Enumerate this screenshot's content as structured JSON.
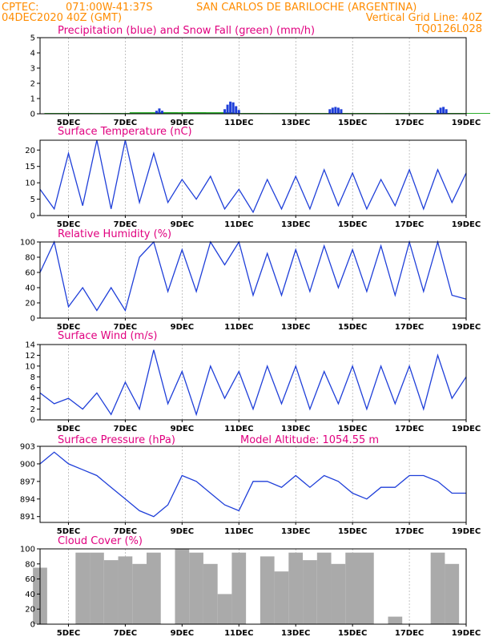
{
  "header": {
    "source": "CPTEC:",
    "coords": "071:00W-41:37S",
    "location": "SAN CARLOS DE BARILOCHE (ARGENTINA)",
    "run": "04DEC2020 40Z (GMT)",
    "grid_note": "Vertical Grid Line: 40Z",
    "model": "TQ0126L028",
    "altitude_label": "Model Altitude: 1054.55 m"
  },
  "colors": {
    "header": "#ff8c00",
    "title": "#e0007f",
    "blue": "#1f3fd9",
    "green": "#22aa22",
    "gray": "#aaaaaa"
  },
  "x_ticks": [
    "5DEC",
    "7DEC",
    "9DEC",
    "11DEC",
    "13DEC",
    "15DEC",
    "17DEC",
    "19DEC"
  ],
  "chart_data": [
    {
      "type": "bar",
      "title": "Precipitation (blue) and Snow Fall (green) (mm/h)",
      "ylim": [
        0,
        5
      ],
      "yticks": [
        "0",
        "1",
        "2",
        "3",
        "4",
        "5"
      ],
      "series": [
        {
          "x": [
            8.1,
            8.2,
            8.3,
            10.5,
            10.6,
            10.7,
            10.8,
            10.9,
            11.0,
            14.2,
            14.3,
            14.4,
            14.5,
            14.6,
            18.0,
            18.1,
            18.2,
            18.3
          ],
          "values": [
            0.2,
            0.35,
            0.2,
            0.3,
            0.6,
            0.8,
            0.75,
            0.5,
            0.25,
            0.3,
            0.4,
            0.45,
            0.4,
            0.3,
            0.25,
            0.4,
            0.45,
            0.3
          ]
        },
        {
          "x": [
            5,
            6,
            7,
            8,
            9,
            10,
            11,
            12,
            13,
            14,
            15,
            16,
            17,
            18,
            19
          ],
          "values": [
            0.05,
            0.05,
            0.05,
            0.1,
            0.1,
            0.1,
            0.05,
            0.05,
            0.05,
            0.05,
            0.05,
            0.05,
            0.05,
            0.05,
            0.05
          ]
        }
      ]
    },
    {
      "type": "line",
      "title": "Surface Temperature (nC)",
      "ylim": [
        0,
        23
      ],
      "yticks": [
        "0",
        "5",
        "10",
        "15",
        "20"
      ],
      "series": [
        {
          "x": [
            4,
            4.5,
            5,
            5.5,
            6,
            6.5,
            7,
            7.5,
            8,
            8.5,
            9,
            9.5,
            10,
            10.5,
            11,
            11.5,
            12,
            12.5,
            13,
            13.5,
            14,
            14.5,
            15,
            15.5,
            16,
            16.5,
            17,
            17.5,
            18,
            18.5,
            19
          ],
          "values": [
            8,
            2,
            19,
            3,
            23,
            2,
            23,
            4,
            19,
            4,
            11,
            5,
            12,
            2,
            8,
            1,
            11,
            2,
            12,
            2,
            14,
            3,
            13,
            2,
            11,
            3,
            14,
            2,
            14,
            4,
            13
          ]
        }
      ]
    },
    {
      "type": "line",
      "title": "Relative Humidity (%)",
      "ylim": [
        0,
        100
      ],
      "yticks": [
        "0",
        "20",
        "40",
        "60",
        "80",
        "100"
      ],
      "series": [
        {
          "x": [
            4,
            4.5,
            5,
            5.5,
            6,
            6.5,
            7,
            7.5,
            8,
            8.5,
            9,
            9.5,
            10,
            10.5,
            11,
            11.5,
            12,
            12.5,
            13,
            13.5,
            14,
            14.5,
            15,
            15.5,
            16,
            16.5,
            17,
            17.5,
            18,
            18.5,
            19
          ],
          "values": [
            60,
            100,
            15,
            40,
            10,
            40,
            10,
            80,
            100,
            35,
            90,
            35,
            100,
            70,
            100,
            30,
            85,
            30,
            90,
            35,
            95,
            40,
            90,
            35,
            95,
            30,
            100,
            35,
            100,
            30,
            25
          ]
        }
      ]
    },
    {
      "type": "line",
      "title": "Surface Wind (m/s)",
      "ylim": [
        0,
        14
      ],
      "yticks": [
        "0",
        "2",
        "4",
        "6",
        "8",
        "10",
        "12",
        "14"
      ],
      "series": [
        {
          "x": [
            4,
            4.5,
            5,
            5.5,
            6,
            6.5,
            7,
            7.5,
            8,
            8.5,
            9,
            9.5,
            10,
            10.5,
            11,
            11.5,
            12,
            12.5,
            13,
            13.5,
            14,
            14.5,
            15,
            15.5,
            16,
            16.5,
            17,
            17.5,
            18,
            18.5,
            19
          ],
          "values": [
            5,
            3,
            4,
            2,
            5,
            1,
            7,
            2,
            13,
            3,
            9,
            1,
            10,
            4,
            9,
            2,
            10,
            3,
            10,
            2,
            9,
            3,
            10,
            2,
            10,
            3,
            10,
            2,
            12,
            4,
            8
          ]
        }
      ]
    },
    {
      "type": "line",
      "title": "Surface Pressure (hPa)",
      "ylim": [
        890,
        903
      ],
      "yticks": [
        "891",
        "894",
        "897",
        "900",
        "903"
      ],
      "series": [
        {
          "x": [
            4,
            4.5,
            5,
            5.5,
            6,
            6.5,
            7,
            7.5,
            8,
            8.5,
            9,
            9.5,
            10,
            10.5,
            11,
            11.5,
            12,
            12.5,
            13,
            13.5,
            14,
            14.5,
            15,
            15.5,
            16,
            16.5,
            17,
            17.5,
            18,
            18.5,
            19
          ],
          "values": [
            900,
            902,
            900,
            899,
            898,
            896,
            894,
            892,
            891,
            893,
            898,
            897,
            895,
            893,
            892,
            897,
            897,
            896,
            898,
            896,
            898,
            897,
            895,
            894,
            896,
            896,
            898,
            898,
            897,
            895,
            895
          ]
        }
      ]
    },
    {
      "type": "area",
      "title": "Cloud Cover (%)",
      "ylim": [
        0,
        100
      ],
      "yticks": [
        "0",
        "20",
        "40",
        "60",
        "80",
        "100"
      ],
      "series": [
        {
          "x": [
            4,
            4.5,
            5,
            5.5,
            6,
            6.5,
            7,
            7.5,
            8,
            8.5,
            9,
            9.5,
            10,
            10.5,
            11,
            11.5,
            12,
            12.5,
            13,
            13.5,
            14,
            14.5,
            15,
            15.5,
            16,
            16.5,
            17,
            17.5,
            18,
            18.5,
            19
          ],
          "values": [
            75,
            0,
            0,
            95,
            95,
            85,
            90,
            80,
            95,
            0,
            100,
            95,
            80,
            40,
            95,
            0,
            90,
            70,
            95,
            85,
            95,
            80,
            95,
            95,
            0,
            10,
            0,
            0,
            95,
            80,
            0
          ]
        }
      ]
    }
  ]
}
